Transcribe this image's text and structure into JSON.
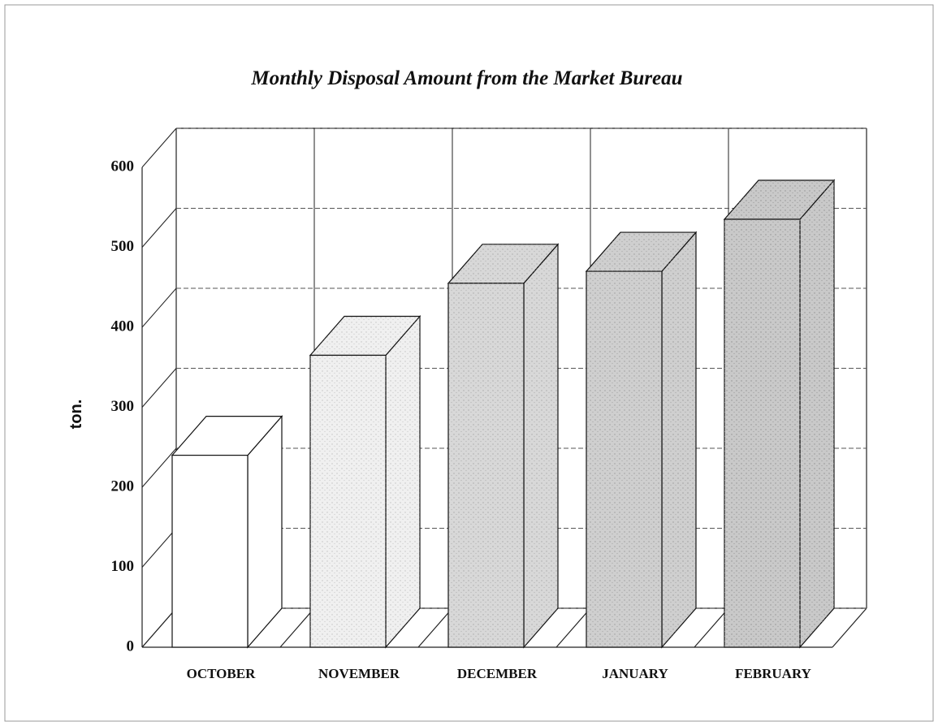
{
  "chart_data": {
    "type": "bar3d",
    "title": "Monthly Disposal Amount from the Market Bureau",
    "y_label": "ton.",
    "categories": [
      "OCTOBER",
      "NOVEMBER",
      "DECEMBER",
      "JANUARY",
      "FEBRUARY"
    ],
    "values": [
      240,
      365,
      455,
      470,
      535
    ],
    "colors": [
      "#ffffff",
      "#f0f0f0",
      "#d8d8d8",
      "#cfcfcf",
      "#c9c9c9"
    ],
    "ylim": [
      0,
      600
    ],
    "yticks": [
      0,
      100,
      200,
      300,
      400,
      500,
      600
    ],
    "grid": true
  }
}
